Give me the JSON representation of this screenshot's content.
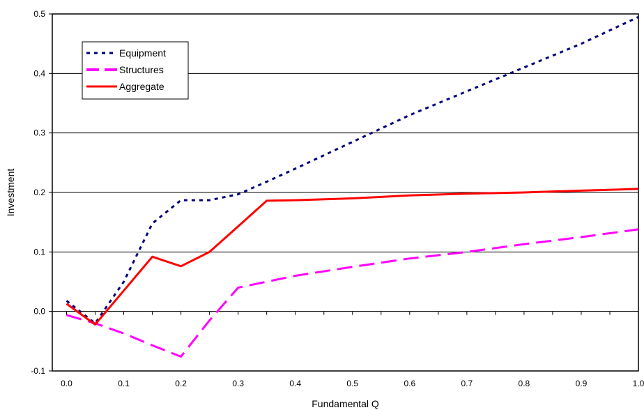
{
  "chart_data": {
    "type": "line",
    "xlabel": "Fundamental Q",
    "ylabel": "Investment",
    "xlim": [
      -0.025,
      1.0
    ],
    "ylim": [
      -0.1,
      0.5
    ],
    "xticks": [
      0.0,
      0.1,
      0.2,
      0.3,
      0.4,
      0.5,
      0.6,
      0.7,
      0.8,
      0.9,
      1.0
    ],
    "xtick_labels": [
      "0.0",
      "0.1",
      "0.2",
      "0.3",
      "0.4",
      "0.5",
      "0.6",
      "0.7",
      "0.8",
      "0.9",
      "1.0"
    ],
    "yticks": [
      -0.1,
      0.0,
      0.1,
      0.2,
      0.3,
      0.4,
      0.5
    ],
    "ytick_labels": [
      "-0.1",
      "0.0",
      "0.1",
      "0.2",
      "0.3",
      "0.4",
      "0.5"
    ],
    "grid": "horizontal",
    "legend": "top-left",
    "series": [
      {
        "name": "Equipment",
        "color": "#000080",
        "style": "dotted",
        "x": [
          0.0,
          0.05,
          0.1,
          0.15,
          0.2,
          0.25,
          0.3,
          0.35,
          0.4,
          0.5,
          0.6,
          0.7,
          0.8,
          0.9,
          1.0
        ],
        "y": [
          0.018,
          -0.02,
          0.05,
          0.148,
          0.187,
          0.187,
          0.197,
          0.218,
          0.24,
          0.285,
          0.33,
          0.37,
          0.41,
          0.45,
          0.495
        ]
      },
      {
        "name": "Structures",
        "color": "#ff00ff",
        "style": "dashed",
        "x": [
          0.0,
          0.05,
          0.1,
          0.15,
          0.2,
          0.25,
          0.3,
          0.35,
          0.4,
          0.5,
          0.6,
          0.7,
          0.8,
          0.9,
          1.0
        ],
        "y": [
          -0.006,
          -0.02,
          -0.037,
          -0.057,
          -0.076,
          -0.015,
          0.04,
          0.05,
          0.06,
          0.075,
          0.089,
          0.1,
          0.113,
          0.125,
          0.138
        ]
      },
      {
        "name": "Aggregate",
        "color": "#ff0000",
        "style": "solid",
        "x": [
          0.0,
          0.05,
          0.1,
          0.15,
          0.2,
          0.25,
          0.3,
          0.35,
          0.4,
          0.5,
          0.6,
          0.7,
          0.8,
          0.9,
          1.0
        ],
        "y": [
          0.013,
          -0.022,
          0.035,
          0.092,
          0.076,
          0.1,
          0.143,
          0.186,
          0.187,
          0.19,
          0.195,
          0.198,
          0.2,
          0.203,
          0.206
        ]
      }
    ]
  }
}
